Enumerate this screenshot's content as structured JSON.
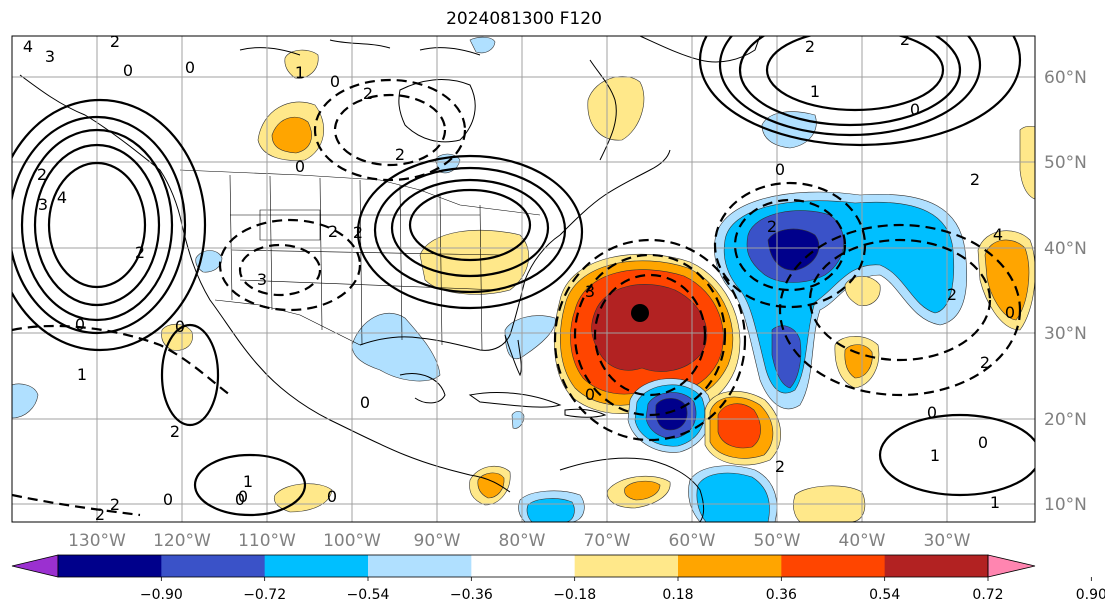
{
  "title": "2024081300 F120",
  "map": {
    "lat_labels": [
      "60°N",
      "50°N",
      "40°N",
      "30°N",
      "20°N",
      "10°N"
    ],
    "lon_labels": [
      "130°W",
      "120°W",
      "110°W",
      "100°W",
      "90°W",
      "80°W",
      "70°W",
      "60°W",
      "50°W",
      "40°W",
      "30°W"
    ],
    "contour_labels": [
      "4",
      "3",
      "2",
      "0",
      "1",
      "0",
      "0",
      "2",
      "2",
      "3",
      "4",
      "2",
      "0",
      "0",
      "2",
      "1",
      "0",
      "2",
      "3",
      "2",
      "0",
      "0",
      "2",
      "0",
      "0",
      "2",
      "3",
      "1",
      "0",
      "0",
      "2",
      "1",
      "2",
      "1",
      "0",
      "0",
      "2",
      "4",
      "0",
      "2",
      "2",
      "0",
      "2",
      "1",
      "0",
      "2",
      "2"
    ],
    "marker": "storm-center"
  },
  "colorbar": {
    "ticks": [
      "−0.90",
      "−0.72",
      "−0.54",
      "−0.36",
      "−0.18",
      "0.18",
      "0.36",
      "0.54",
      "0.72",
      "0.90"
    ],
    "colors": [
      "#9b30d0",
      "#00008b",
      "#3a52c8",
      "#00bfff",
      "#b0e0ff",
      "#ffffff",
      "#ffe88a",
      "#ffa500",
      "#ff4500",
      "#b22222",
      "#ff85b0"
    ]
  }
}
